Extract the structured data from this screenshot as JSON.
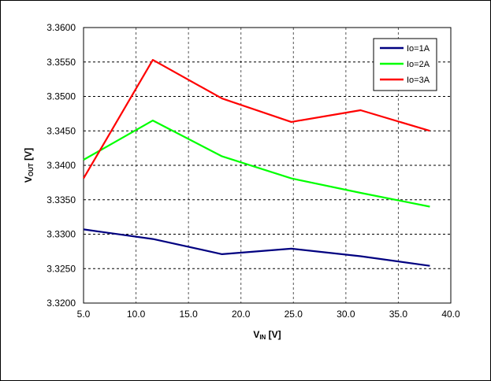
{
  "chart_data": {
    "type": "line",
    "xlabel": {
      "main": "V",
      "sub": "IN",
      "suffix": " [V]"
    },
    "ylabel": {
      "main": "V",
      "sub": "OUT",
      "suffix": " [V]"
    },
    "xlim": [
      5.0,
      40.0
    ],
    "ylim": [
      3.32,
      3.36
    ],
    "xticks": [
      5.0,
      10.0,
      15.0,
      20.0,
      25.0,
      30.0,
      35.0,
      40.0
    ],
    "xtick_labels": [
      "5.0",
      "10.0",
      "15.0",
      "20.0",
      "25.0",
      "30.0",
      "35.0",
      "40.0"
    ],
    "yticks": [
      3.32,
      3.325,
      3.33,
      3.335,
      3.34,
      3.345,
      3.35,
      3.355,
      3.36
    ],
    "ytick_labels": [
      "3.3200",
      "3.3250",
      "3.3300",
      "3.3350",
      "3.3400",
      "3.3450",
      "3.3500",
      "3.3550",
      "3.3600"
    ],
    "grid": true,
    "legend_position": "top-right",
    "x": [
      5.0,
      11.6,
      18.2,
      24.8,
      31.4,
      38.0
    ],
    "series": [
      {
        "name": "Io=1A",
        "color": "#000080",
        "values": [
          3.3307,
          3.3293,
          3.3271,
          3.3279,
          3.3268,
          3.3254
        ]
      },
      {
        "name": "Io=2A",
        "color": "#00ff00",
        "values": [
          3.3408,
          3.3465,
          3.3413,
          3.3381,
          3.336,
          3.334
        ]
      },
      {
        "name": "Io=3A",
        "color": "#ff0000",
        "values": [
          3.3381,
          3.3553,
          3.3497,
          3.3463,
          3.348,
          3.345
        ]
      }
    ]
  }
}
